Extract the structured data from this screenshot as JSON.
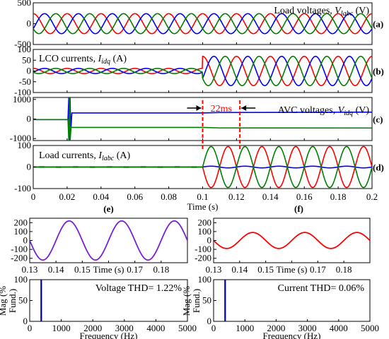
{
  "colors": {
    "phase_a": "#ff0000",
    "phase_b": "#0000ff",
    "phase_c": "#008000",
    "purple": "#7a1fd6",
    "fft": "#00008b",
    "marker": "#ff0000"
  },
  "chart_data": [
    {
      "id": "a",
      "type": "line",
      "panel_tag": "(a)",
      "label_parts": [
        "Load voltages, ",
        "V",
        "labc",
        " (V)"
      ],
      "xlim": [
        0,
        0.2
      ],
      "ylim": [
        -500,
        500
      ],
      "yticks": [
        500,
        0,
        -500
      ],
      "series": [
        {
          "phase": "a",
          "color": "#ff0000",
          "amplitude": 240,
          "frequency_hz": 50,
          "phase_deg": 90
        },
        {
          "phase": "b",
          "color": "#0000ff",
          "amplitude": 240,
          "frequency_hz": 50,
          "phase_deg": -30
        },
        {
          "phase": "c",
          "color": "#008000",
          "amplitude": 240,
          "frequency_hz": 50,
          "phase_deg": 210
        }
      ]
    },
    {
      "id": "b",
      "type": "line",
      "panel_tag": "(b)",
      "label_parts": [
        "LCO currents, ",
        "I",
        "idq",
        " (A)"
      ],
      "xlim": [
        0,
        0.2
      ],
      "ylim": [
        -100,
        100
      ],
      "yticks": [
        100,
        50,
        0,
        -50,
        -100
      ],
      "series": [
        {
          "color": "#ff0000",
          "amplitude_before": 12,
          "amplitude_after": 68,
          "frequency_hz": 50,
          "phase_deg": 90,
          "step_time": 0.1
        },
        {
          "color": "#0000ff",
          "amplitude_before": 12,
          "amplitude_after": 68,
          "frequency_hz": 50,
          "phase_deg": -30,
          "step_time": 0.1
        },
        {
          "color": "#008000",
          "amplitude_before": 12,
          "amplitude_after": 68,
          "frequency_hz": 50,
          "phase_deg": 210,
          "step_time": 0.1
        }
      ]
    },
    {
      "id": "c",
      "type": "line",
      "panel_tag": "(c)",
      "label_parts": [
        "AVC voltages, ",
        "V",
        "idq",
        " (V)"
      ],
      "xlim": [
        0,
        0.2
      ],
      "ylim": [
        -1100,
        1100
      ],
      "yticks": [
        1000,
        0,
        -1000
      ],
      "series": [
        {
          "name": "d",
          "color": "#0000ff",
          "points": [
            [
              0,
              -30
            ],
            [
              0.0205,
              -30
            ],
            [
              0.021,
              1100
            ],
            [
              0.0213,
              -1100
            ],
            [
              0.0217,
              1100
            ],
            [
              0.0222,
              -600
            ],
            [
              0.0228,
              310
            ],
            [
              0.1,
              310
            ],
            [
              0.11,
              330
            ],
            [
              0.2,
              350
            ]
          ]
        },
        {
          "name": "q",
          "color": "#008000",
          "points": [
            [
              0,
              -30
            ],
            [
              0.0205,
              -30
            ],
            [
              0.021,
              -1100
            ],
            [
              0.0214,
              1100
            ],
            [
              0.0218,
              -1100
            ],
            [
              0.0223,
              -400
            ],
            [
              0.023,
              -430
            ],
            [
              0.1,
              -430
            ],
            [
              0.11,
              -455
            ],
            [
              0.2,
              -460
            ]
          ]
        }
      ],
      "annotation": {
        "text": "22ms",
        "t1": 0.1,
        "t2": 0.122,
        "color": "#ff0000"
      }
    },
    {
      "id": "d",
      "type": "line",
      "panel_tag": "(d)",
      "label_parts": [
        "Load currents, ",
        "I",
        "labc",
        " (A)"
      ],
      "xlim": [
        0,
        0.2
      ],
      "ylim": [
        -100,
        100
      ],
      "yticks": [
        100,
        0,
        -100
      ],
      "xticks": [
        0,
        0.02,
        0.04,
        0.06,
        0.08,
        0.1,
        0.12,
        0.14,
        0.16,
        0.18,
        0.2
      ],
      "xlabel": "Time (s)",
      "series": [
        {
          "color": "#ff0000",
          "amplitude_before": 1,
          "amplitude_after": 95,
          "frequency_hz": 50,
          "phase_deg": 180,
          "step_time": 0.1
        },
        {
          "color": "#0000ff",
          "amplitude_before": 1,
          "amplitude_after": 4,
          "frequency_hz": 50,
          "phase_deg": 0,
          "step_time": 0.1
        },
        {
          "color": "#008000",
          "amplitude_before": 1,
          "amplitude_after": 95,
          "frequency_hz": 50,
          "phase_deg": 0,
          "step_time": 0.1
        }
      ]
    },
    {
      "id": "e_time",
      "type": "line",
      "panel_tag": "(e)",
      "xlim": [
        0.13,
        0.19
      ],
      "ylim": [
        -250,
        250
      ],
      "yticks": [
        200,
        100,
        0,
        -100,
        -200
      ],
      "xticks": [
        "0.13",
        "0.14",
        "0.15",
        "Time (s)",
        "0.17",
        "0.18"
      ],
      "series": [
        {
          "color": "#7a1fd6",
          "amplitude": 220,
          "frequency_hz": 50,
          "phase_deg": 0
        }
      ]
    },
    {
      "id": "f_time",
      "type": "line",
      "panel_tag": "(f)",
      "xlim": [
        0.13,
        0.19
      ],
      "ylim": [
        -250,
        250
      ],
      "yticks": [
        200,
        100,
        0,
        -100,
        -200
      ],
      "xticks": [
        "0.13",
        "0.14",
        "0.15",
        "Time (s)",
        "0.17",
        "0.18"
      ],
      "series": [
        {
          "color": "#ff0000",
          "amplitude": 90,
          "frequency_hz": 50,
          "phase_deg": 0
        }
      ]
    },
    {
      "id": "e_fft",
      "type": "bar",
      "ylabel_lines": [
        "Mag (%",
        "Fund.)"
      ],
      "xlabel": "Frequency (Hz)",
      "xlim": [
        0,
        5000
      ],
      "ylim": [
        0,
        100
      ],
      "yticks": [
        100,
        50,
        0
      ],
      "xticks": [
        0,
        1000,
        2000,
        3000,
        4000,
        5000
      ],
      "bars": [
        {
          "x": 50,
          "value": 100
        }
      ],
      "color": "#00008b",
      "annotation": "Voltage THD= 1.22%"
    },
    {
      "id": "f_fft",
      "type": "bar",
      "ylabel_lines": [
        "Mag (%",
        "Fund.)"
      ],
      "xlabel": "Frequency (Hz)",
      "xlim": [
        0,
        5000
      ],
      "ylim": [
        0,
        100
      ],
      "yticks": [
        100,
        50,
        0
      ],
      "xticks": [
        0,
        1000,
        2000,
        3000,
        4000,
        5000
      ],
      "bars": [
        {
          "x": 50,
          "value": 100
        }
      ],
      "color": "#00008b",
      "annotation": "Current THD= 0.06%"
    }
  ]
}
